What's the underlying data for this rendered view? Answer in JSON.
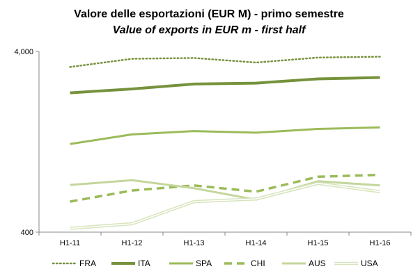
{
  "chart_data": {
    "type": "line",
    "title": "Valore delle esportazioni (EUR M) - primo semestre",
    "subtitle": "Value of exports in EUR m - first half",
    "categories": [
      "H1-11",
      "H1-12",
      "H1-13",
      "H1-14",
      "H1-15",
      "H1-16"
    ],
    "yscale": "log",
    "ylim": [
      400,
      4000
    ],
    "ytick_labels": [
      "4,000",
      "400"
    ],
    "series": [
      {
        "name": "FRA",
        "values": [
          3280,
          3640,
          3680,
          3470,
          3700,
          3740
        ],
        "color": "#76923C",
        "style": "dotted"
      },
      {
        "name": "ITA",
        "values": [
          2360,
          2480,
          2640,
          2670,
          2820,
          2870
        ],
        "color": "#76923C",
        "style": "solid-thick"
      },
      {
        "name": "SPA",
        "values": [
          1230,
          1390,
          1450,
          1420,
          1490,
          1520
        ],
        "color": "#9BBB59",
        "style": "solid"
      },
      {
        "name": "CHI",
        "values": [
          590,
          680,
          725,
          670,
          810,
          830
        ],
        "color": "#9BBB59",
        "style": "dashed"
      },
      {
        "name": "AUS",
        "values": [
          730,
          775,
          700,
          605,
          765,
          725
        ],
        "color": "#C3D69B",
        "style": "solid"
      },
      {
        "name": "USA",
        "values": [
          420,
          445,
          590,
          610,
          745,
          670
        ],
        "color": "#D7E4BD",
        "style": "double"
      }
    ]
  }
}
